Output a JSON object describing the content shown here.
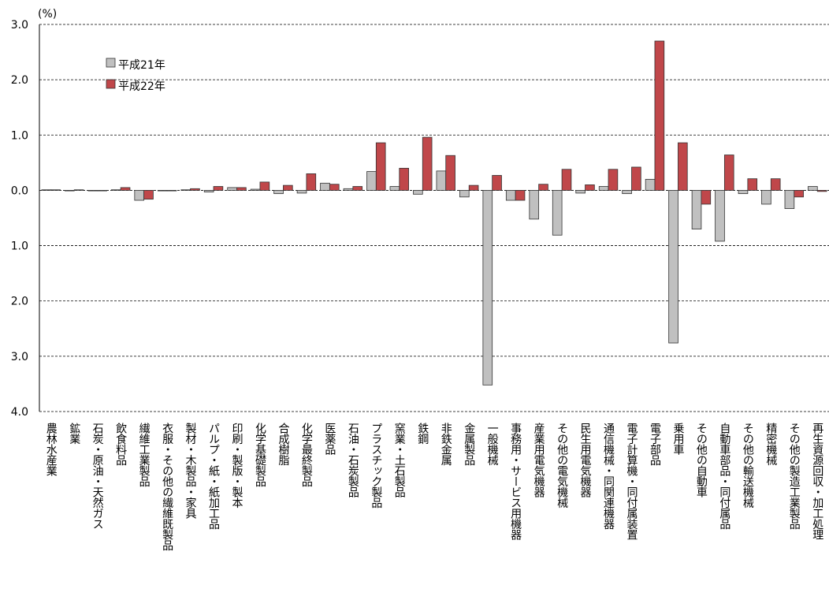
{
  "chart_data": {
    "type": "bar",
    "unit_label": "(%)",
    "categories": [
      "農林水産業",
      "鉱業",
      "石炭・原油・天然ガス",
      "飲食料品",
      "繊維工業製品",
      "衣服・その他の繊維既製品",
      "製材・木製品・家具",
      "パルプ・紙・紙加工品",
      "印刷・製版・製本",
      "化学基礎製品",
      "合成樹脂",
      "化学最終製品",
      "医薬品",
      "石油・石炭製品",
      "プラスチック製品",
      "窯業・土石製品",
      "鉄鋼",
      "非鉄金属",
      "金属製品",
      "一般機械",
      "事務用・サービス用機器",
      "産業用電気機器",
      "その他の電気機械",
      "民生用電気機器",
      "通信機械・同関連機器",
      "電子計算機・同付属装置",
      "電子部品",
      "乗用車",
      "その他の自動車",
      "自動車部品・同付属品",
      "その他の輸送機械",
      "精密機械",
      "その他の製造工業製品",
      "再生資源回収・加工処理"
    ],
    "series": [
      {
        "name": "平成21年",
        "color": "#c0c0c0",
        "values": [
          0.01,
          -0.01,
          -0.01,
          0.01,
          -0.18,
          -0.01,
          0.01,
          -0.03,
          0.05,
          0.02,
          -0.06,
          -0.05,
          0.13,
          0.03,
          0.34,
          0.07,
          -0.07,
          0.35,
          -0.12,
          -3.52,
          -0.18,
          -0.52,
          -0.81,
          -0.05,
          0.07,
          -0.06,
          0.2,
          -2.76,
          -0.7,
          -0.92,
          -0.06,
          -0.25,
          -0.33,
          0.07
        ]
      },
      {
        "name": "平成22年",
        "color": "#c0474a",
        "values": [
          0.01,
          0.01,
          -0.01,
          0.05,
          -0.16,
          -0.01,
          0.03,
          0.07,
          0.05,
          0.15,
          0.09,
          0.3,
          0.11,
          0.07,
          0.86,
          0.4,
          0.96,
          0.63,
          0.09,
          0.27,
          -0.18,
          0.11,
          0.38,
          0.1,
          0.38,
          0.42,
          2.7,
          0.86,
          -0.25,
          0.64,
          0.21,
          0.21,
          -0.12,
          -0.02
        ]
      }
    ],
    "ylim": [
      -4,
      3
    ],
    "yticks": [
      {
        "value": 3,
        "label": "3.0"
      },
      {
        "value": 2,
        "label": "2.0"
      },
      {
        "value": 1,
        "label": "1.0"
      },
      {
        "value": 0,
        "label": "0.0"
      },
      {
        "value": -1,
        "label": "1.0"
      },
      {
        "value": -2,
        "label": "2.0"
      },
      {
        "value": -3,
        "label": "3.0"
      },
      {
        "value": -4,
        "label": "4.0"
      }
    ],
    "grid": true
  }
}
